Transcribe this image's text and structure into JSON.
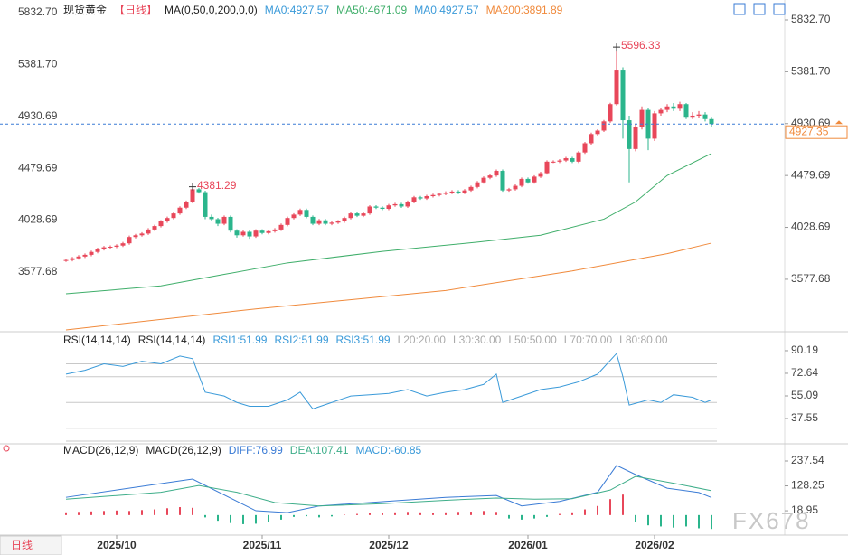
{
  "tab": "日线",
  "watermark": "FX678",
  "chart_data": [
    {
      "type": "candlestick",
      "title": "现货黄金",
      "period": "【日线】",
      "indicator": "MA(0,50,0,200,0,0)",
      "legend": [
        {
          "text": "MA0:4927.57",
          "color": "#3a9ad9"
        },
        {
          "text": "MA50:4671.09",
          "color": "#3fae6a"
        },
        {
          "text": "MA0:4927.57",
          "color": "#3a9ad9"
        },
        {
          "text": "MA200:3891.89",
          "color": "#f08a3c"
        }
      ],
      "up_color": "#e8475a",
      "down_color": "#2bb58c",
      "candles": [
        [
          3740,
          3757,
          3728,
          3745
        ],
        [
          3745,
          3772,
          3733,
          3760
        ],
        [
          3760,
          3787,
          3748,
          3775
        ],
        [
          3775,
          3802,
          3763,
          3790
        ],
        [
          3790,
          3827,
          3778,
          3815
        ],
        [
          3815,
          3852,
          3803,
          3840
        ],
        [
          3840,
          3867,
          3828,
          3855
        ],
        [
          3855,
          3872,
          3843,
          3860
        ],
        [
          3860,
          3882,
          3848,
          3870
        ],
        [
          3870,
          3902,
          3858,
          3890
        ],
        [
          3890,
          3957,
          3878,
          3945
        ],
        [
          3945,
          3972,
          3933,
          3960
        ],
        [
          3960,
          3987,
          3948,
          3975
        ],
        [
          3975,
          4022,
          3963,
          4010
        ],
        [
          4010,
          4052,
          3998,
          4040
        ],
        [
          4040,
          4092,
          4028,
          4080
        ],
        [
          4080,
          4122,
          4068,
          4110
        ],
        [
          4110,
          4162,
          4098,
          4150
        ],
        [
          4150,
          4212,
          4138,
          4200
        ],
        [
          4200,
          4262,
          4188,
          4250
        ],
        [
          4250,
          4381.29,
          4238,
          4360
        ],
        [
          4360,
          4372,
          4323,
          4335
        ],
        [
          4335,
          4347,
          4100,
          4120
        ],
        [
          4120,
          4140,
          4080,
          4100
        ],
        [
          4100,
          4112,
          4040,
          4060
        ],
        [
          4060,
          4132,
          4048,
          4120
        ],
        [
          4120,
          4132,
          3985,
          4000
        ],
        [
          4000,
          4012,
          3940,
          3960
        ],
        [
          3960,
          4002,
          3948,
          3990
        ],
        [
          3990,
          4002,
          3930,
          3950
        ],
        [
          3950,
          4012,
          3938,
          4000
        ],
        [
          4000,
          4012,
          3968,
          3980
        ],
        [
          3980,
          4007,
          3968,
          3995
        ],
        [
          3995,
          4022,
          3983,
          4010
        ],
        [
          4010,
          4062,
          3998,
          4050
        ],
        [
          4050,
          4122,
          4038,
          4110
        ],
        [
          4110,
          4152,
          4098,
          4140
        ],
        [
          4140,
          4192,
          4128,
          4180
        ],
        [
          4180,
          4192,
          4108,
          4120
        ],
        [
          4120,
          4132,
          4048,
          4060
        ],
        [
          4060,
          4102,
          4048,
          4090
        ],
        [
          4090,
          4102,
          4048,
          4060
        ],
        [
          4060,
          4082,
          4048,
          4070
        ],
        [
          4070,
          4092,
          4058,
          4080
        ],
        [
          4080,
          4122,
          4068,
          4110
        ],
        [
          4110,
          4162,
          4098,
          4150
        ],
        [
          4150,
          4162,
          4118,
          4130
        ],
        [
          4130,
          4162,
          4118,
          4150
        ],
        [
          4150,
          4222,
          4138,
          4210
        ],
        [
          4210,
          4222,
          4188,
          4200
        ],
        [
          4200,
          4212,
          4178,
          4190
        ],
        [
          4190,
          4232,
          4178,
          4220
        ],
        [
          4220,
          4242,
          4208,
          4230
        ],
        [
          4230,
          4242,
          4198,
          4210
        ],
        [
          4210,
          4262,
          4198,
          4250
        ],
        [
          4250,
          4302,
          4238,
          4290
        ],
        [
          4290,
          4302,
          4268,
          4280
        ],
        [
          4280,
          4312,
          4268,
          4300
        ],
        [
          4300,
          4322,
          4288,
          4310
        ],
        [
          4310,
          4332,
          4298,
          4320
        ],
        [
          4320,
          4342,
          4308,
          4330
        ],
        [
          4330,
          4352,
          4318,
          4340
        ],
        [
          4340,
          4352,
          4318,
          4330
        ],
        [
          4330,
          4362,
          4318,
          4350
        ],
        [
          4350,
          4392,
          4338,
          4380
        ],
        [
          4380,
          4432,
          4368,
          4420
        ],
        [
          4420,
          4472,
          4408,
          4460
        ],
        [
          4460,
          4492,
          4448,
          4480
        ],
        [
          4480,
          4532,
          4468,
          4520
        ],
        [
          4520,
          4532,
          4338,
          4350
        ],
        [
          4350,
          4372,
          4338,
          4360
        ],
        [
          4360,
          4402,
          4348,
          4390
        ],
        [
          4390,
          4462,
          4378,
          4450
        ],
        [
          4450,
          4462,
          4408,
          4420
        ],
        [
          4420,
          4482,
          4408,
          4470
        ],
        [
          4470,
          4512,
          4458,
          4500
        ],
        [
          4500,
          4612,
          4488,
          4600
        ],
        [
          4600,
          4612,
          4588,
          4600
        ],
        [
          4600,
          4622,
          4588,
          4610
        ],
        [
          4610,
          4642,
          4598,
          4630
        ],
        [
          4630,
          4642,
          4588,
          4600
        ],
        [
          4600,
          4692,
          4588,
          4680
        ],
        [
          4680,
          4772,
          4668,
          4760
        ],
        [
          4760,
          4852,
          4748,
          4840
        ],
        [
          4840,
          4882,
          4828,
          4870
        ],
        [
          4870,
          4962,
          4858,
          4950
        ],
        [
          4950,
          5112,
          4938,
          5100
        ],
        [
          5100,
          5596.33,
          5088,
          5400
        ],
        [
          5400,
          5420,
          4800,
          4960
        ],
        [
          4960,
          5000,
          4420,
          4710
        ],
        [
          4710,
          4930,
          4690,
          4900
        ],
        [
          4900,
          5080,
          4880,
          5050
        ],
        [
          5050,
          5070,
          4700,
          4800
        ],
        [
          4800,
          5040,
          4780,
          5020
        ],
        [
          5020,
          5070,
          5000,
          5050
        ],
        [
          5050,
          5100,
          5030,
          5080
        ],
        [
          5080,
          5110,
          5040,
          5060
        ],
        [
          5060,
          5120,
          5040,
          5100
        ],
        [
          5100,
          5110,
          4970,
          4990
        ],
        [
          4990,
          5030,
          4970,
          5000
        ],
        [
          5000,
          5040,
          4980,
          5010
        ],
        [
          5010,
          5030,
          4950,
          4970
        ],
        [
          4970,
          4990,
          4900,
          4927
        ]
      ],
      "x_labels": [
        {
          "index": 8,
          "label": "2025/10"
        },
        {
          "index": 31,
          "label": "2025/11"
        },
        {
          "index": 51,
          "label": "2025/12"
        },
        {
          "index": 73,
          "label": "2026/01"
        },
        {
          "index": 93,
          "label": "2026/02"
        }
      ],
      "ylim": [
        3137,
        5927
      ],
      "yticks": [
        {
          "value": 5832.7,
          "label": "5832.70"
        },
        {
          "value": 5381.7,
          "label": "5381.70"
        },
        4930.69,
        4479.69,
        4028.69,
        3577.68
      ],
      "last_price": 4927.35,
      "series": [
        {
          "color": "#3fae6a",
          "x": [
            0,
            15,
            25,
            35,
            50,
            65,
            75,
            85,
            90,
            95,
            102
          ],
          "values": [
            3451,
            3520,
            3620,
            3720,
            3820,
            3900,
            3960,
            4100,
            4250,
            4480,
            4671.09
          ]
        },
        {
          "color": "#f08a3c",
          "x": [
            0,
            30,
            60,
            80,
            95,
            102
          ],
          "values": [
            3137,
            3320,
            3480,
            3650,
            3800,
            3891.89
          ]
        }
      ]
    },
    {
      "type": "line",
      "title": "RSI(14,14,14)",
      "legend": [
        {
          "text": "RSI1:51.99",
          "color": "#3a9ad9"
        },
        {
          "text": "RSI2:51.99",
          "color": "#3a9ad9"
        },
        {
          "text": "RSI3:51.99",
          "color": "#3a9ad9"
        },
        {
          "text": "L20:20.00",
          "color": "#aaaaaa"
        },
        {
          "text": "L30:30.00",
          "color": "#aaaaaa"
        },
        {
          "text": "L50:50.00",
          "color": "#aaaaaa"
        },
        {
          "text": "L70:70.00",
          "color": "#aaaaaa"
        },
        {
          "text": "L80:80.00",
          "color": "#aaaaaa"
        }
      ],
      "levels": [
        20,
        30,
        50,
        70,
        80
      ],
      "ylim": [
        18.6,
        104.2
      ],
      "yticks": [
        90.19,
        72.64,
        55.09,
        37.55
      ],
      "series": [
        {
          "color": "#3a9ad9",
          "x": [
            0,
            3,
            6,
            9,
            12,
            15,
            18,
            20,
            22,
            25,
            27,
            29,
            32,
            35,
            37,
            39,
            42,
            45,
            48,
            51,
            54,
            57,
            60,
            63,
            66,
            68,
            69,
            72,
            75,
            78,
            81,
            84,
            87,
            88,
            89,
            92,
            94,
            96,
            99,
            101,
            102
          ],
          "values": [
            72,
            75,
            80,
            78,
            82,
            80,
            86,
            84,
            58,
            55,
            50,
            47,
            47,
            52,
            58,
            45,
            50,
            55,
            56,
            57,
            60,
            55,
            58,
            60,
            64,
            72,
            50,
            55,
            60,
            62,
            66,
            72,
            88,
            70,
            48,
            52,
            50,
            56,
            54,
            50,
            52
          ]
        }
      ]
    },
    {
      "type": "macd",
      "title": "MACD(26,12,9)",
      "legend": [
        {
          "text": "DIFF:76.99",
          "color": "#3a7bd5"
        },
        {
          "text": "DEA:107.41",
          "color": "#3fae8a"
        },
        {
          "text": "MACD:-60.85",
          "color": "#3a9ad9"
        }
      ],
      "ylim": [
        -80,
        305
      ],
      "yticks": [
        237.54,
        128.25,
        18.95
      ],
      "histogram": {
        "up_color": "#e8475a",
        "down_color": "#2bb58c",
        "x": [
          0,
          2,
          4,
          6,
          8,
          10,
          12,
          14,
          16,
          18,
          20,
          22,
          24,
          26,
          28,
          30,
          32,
          34,
          36,
          38,
          40,
          42,
          44,
          46,
          48,
          50,
          52,
          54,
          56,
          58,
          60,
          62,
          64,
          66,
          68,
          70,
          72,
          74,
          76,
          78,
          80,
          82,
          84,
          86,
          88,
          90,
          92,
          94,
          96,
          98,
          100,
          102
        ],
        "values": [
          12,
          14,
          16,
          18,
          20,
          18,
          22,
          25,
          30,
          35,
          32,
          -10,
          -25,
          -35,
          -40,
          -38,
          -30,
          -20,
          -8,
          -5,
          -10,
          -6,
          2,
          5,
          8,
          10,
          12,
          14,
          12,
          10,
          12,
          14,
          15,
          18,
          14,
          -15,
          -20,
          -15,
          -8,
          5,
          12,
          25,
          40,
          70,
          90,
          -30,
          -45,
          -50,
          -55,
          -50,
          -58,
          -61
        ]
      },
      "series": [
        {
          "color": "#3a7bd5",
          "x": [
            0,
            18,
            20,
            30,
            35,
            40,
            50,
            60,
            68,
            72,
            78,
            84,
            87,
            90,
            95,
            100,
            102
          ],
          "values": [
            78,
            150,
            158,
            19,
            11,
            40,
            59,
            78,
            86,
            40,
            60,
            100,
            218,
            178,
            118,
            99,
            77
          ]
        },
        {
          "color": "#3fae8a",
          "x": [
            0,
            15,
            21,
            27,
            33,
            40,
            50,
            60,
            68,
            74,
            80,
            86,
            90,
            96,
            102
          ],
          "values": [
            70,
            100,
            130,
            100,
            55,
            40,
            50,
            65,
            75,
            70,
            72,
            110,
            170,
            140,
            107
          ]
        }
      ]
    }
  ]
}
